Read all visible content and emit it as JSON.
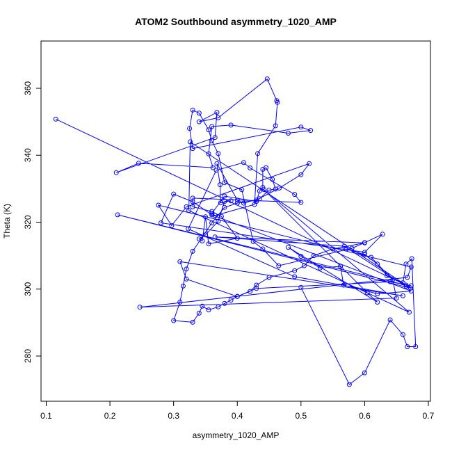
{
  "chart_data": {
    "type": "line",
    "title": "ATOM2 Southbound asymmetry_1020_AMP",
    "xlabel": "asymmetry_1020_AMP",
    "ylabel": "Theta (K)",
    "xlim": [
      0.1,
      0.7
    ],
    "ylim": [
      270,
      370
    ],
    "xticks": [
      0.1,
      0.2,
      0.3,
      0.4,
      0.5,
      0.6,
      0.7
    ],
    "yticks": [
      280,
      300,
      320,
      340,
      360
    ],
    "grid": false,
    "marker": "open-circle",
    "color": "#0000ff",
    "series": [
      {
        "x": [
          0.115,
          0.665,
          0.212,
          0.672,
          0.326,
          0.324,
          0.67,
          0.442,
          0.604,
          0.62,
          0.48,
          0.5,
          0.53,
          0.562,
          0.567,
          0.62,
          0.673,
          0.36,
          0.33,
          0.3,
          0.28,
          0.6,
          0.628,
          0.6,
          0.58,
          0.465,
          0.44,
          0.425,
          0.407,
          0.38,
          0.37,
          0.36,
          0.355,
          0.34,
          0.33,
          0.325,
          0.33,
          0.5,
          0.515,
          0.48,
          0.39,
          0.36,
          0.355,
          0.362,
          0.245,
          0.21,
          0.365,
          0.368,
          0.34,
          0.37,
          0.447,
          0.462,
          0.463,
          0.46,
          0.432,
          0.427,
          0.365,
          0.36,
          0.38,
          0.43,
          0.435,
          0.44,
          0.44,
          0.445,
          0.455,
          0.46,
          0.45,
          0.435,
          0.41,
          0.4,
          0.368,
          0.373,
          0.374,
          0.39,
          0.38,
          0.37,
          0.35,
          0.34,
          0.345,
          0.35,
          0.355,
          0.4,
          0.375,
          0.36,
          0.33,
          0.33,
          0.5,
          0.49,
          0.42,
          0.41,
          0.367,
          0.323,
          0.49,
          0.66,
          0.31,
          0.32,
          0.4,
          0.43,
          0.64,
          0.673,
          0.665,
          0.568,
          0.365,
          0.6,
          0.55,
          0.52,
          0.505,
          0.49,
          0.45,
          0.43,
          0.42,
          0.4,
          0.39,
          0.38,
          0.37,
          0.355,
          0.345,
          0.34,
          0.33,
          0.3,
          0.31,
          0.315,
          0.32,
          0.33,
          0.36,
          0.38,
          0.4,
          0.43,
          0.466,
          0.5,
          0.513,
          0.32,
          0.297,
          0.276,
          0.673,
          0.667,
          0.247,
          0.65,
          0.644,
          0.61,
          0.571,
          0.6,
          0.62,
          0.635,
          0.66,
          0.665,
          0.674,
          0.68,
          0.667,
          0.66,
          0.64,
          0.6,
          0.576,
          0.5
        ],
        "y": [
          350.8,
          301.2,
          322.2,
          300.3,
          344.0,
          323.5,
          293.1,
          329.7,
          298.9,
          296.1,
          312.5,
          309.8,
          306.3,
          306.8,
          301.2,
          298.6,
          299.4,
          322.2,
          326.1,
          328.4,
          319.8,
          311.0,
          316.4,
          313.9,
          312.2,
          307.0,
          312.0,
          314.2,
          329.7,
          331.8,
          340.5,
          344.3,
          347.6,
          352.6,
          353.5,
          348.0,
          342.0,
          348.4,
          347.4,
          346.6,
          349.0,
          348.6,
          340.4,
          336.3,
          337.6,
          334.8,
          345.3,
          352.8,
          350.0,
          351.2,
          362.8,
          356.3,
          355.8,
          348.8,
          340.5,
          325.3,
          322.0,
          322.6,
          327.8,
          326.2,
          329.3,
          330.4,
          335.8,
          336.3,
          332.8,
          329.9,
          329.6,
          327.0,
          325.7,
          326.6,
          337.5,
          331.2,
          325.8,
          326.4,
          326.2,
          320.3,
          316.2,
          315.0,
          314.4,
          321.6,
          313.5,
          315.2,
          321.7,
          323.2,
          324.6,
          327.2,
          325.9,
          328.3,
          336.2,
          337.8,
          335.5,
          318.0,
          303.7,
          298.0,
          308.2,
          303.0,
          297.8,
          300.2,
          302.2,
          301.0,
          300.8,
          312.8,
          315.6,
          313.8,
          312.0,
          310.0,
          307.0,
          305.5,
          303.5,
          301.2,
          299.3,
          297.8,
          296.7,
          295.7,
          294.7,
          293.8,
          294.9,
          292.8,
          290.1,
          290.6,
          296.1,
          300.9,
          306.0,
          311.3,
          319.8,
          324.4,
          325.7,
          326.6,
          330.2,
          334.2,
          337.5,
          324.6,
          319.0,
          325.1,
          306.6,
          303.5,
          294.6,
          297.3,
          302.8,
          309.5,
          312.0,
          310.3,
          307.5,
          304.0,
          301.9,
          307.5,
          309.1,
          282.8,
          282.8,
          286.4,
          290.8,
          275.0,
          271.5,
          300.5
        ]
      }
    ]
  }
}
